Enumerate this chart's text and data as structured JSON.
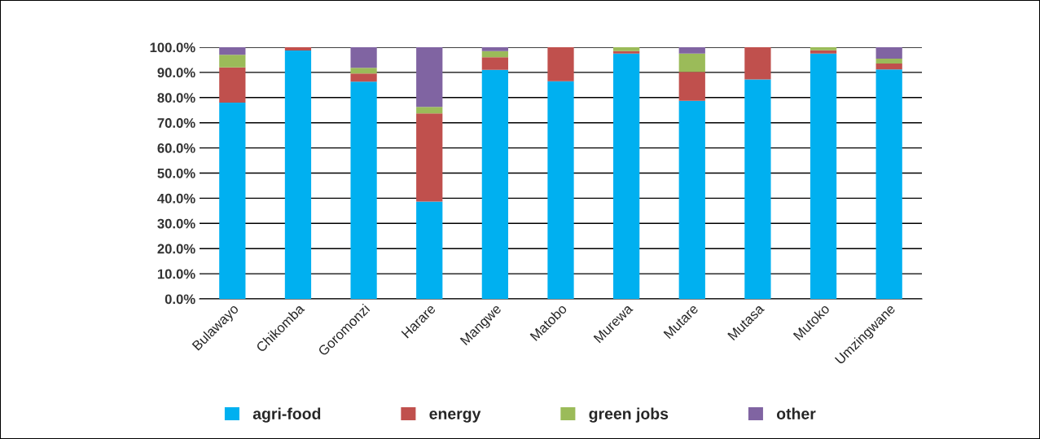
{
  "chart_data": {
    "type": "bar",
    "stacked": true,
    "categories": [
      "Bulawayo",
      "Chikomba",
      "Goromonzi",
      "Harare",
      "Mangwe",
      "Matobo",
      "Murewa",
      "Mutare",
      "Mutasa",
      "Mutoko",
      "Umzingwane"
    ],
    "series": [
      {
        "name": "agri-food",
        "color": "#00b0f0",
        "values": [
          78,
          98.7,
          86.3,
          38.7,
          91,
          86.5,
          97.5,
          78.7,
          87.2,
          97.5,
          91.2
        ]
      },
      {
        "name": "energy",
        "color": "#c0504d",
        "values": [
          14,
          1.3,
          3.3,
          35,
          5,
          13.5,
          1,
          11.5,
          12.8,
          1.3,
          2.3
        ]
      },
      {
        "name": "green jobs",
        "color": "#9bbb59",
        "values": [
          5,
          null,
          2.2,
          2.6,
          2.5,
          null,
          1.5,
          7.3,
          null,
          1.2,
          2
        ]
      },
      {
        "name": "other",
        "color": "#8064a2",
        "values": [
          3,
          null,
          8.2,
          23.7,
          1.5,
          null,
          null,
          2.5,
          null,
          null,
          4.5
        ]
      }
    ],
    "ylim": [
      0,
      100
    ],
    "yticks": [
      {
        "value": 0,
        "label": "0.0%"
      },
      {
        "value": 10,
        "label": "10.0%"
      },
      {
        "value": 20,
        "label": "20.0%"
      },
      {
        "value": 30,
        "label": "30.0%"
      },
      {
        "value": 40,
        "label": "40.0%"
      },
      {
        "value": 50,
        "label": "50.0%"
      },
      {
        "value": 60,
        "label": "60.0%"
      },
      {
        "value": 70,
        "label": "70.0%"
      },
      {
        "value": 80,
        "label": "80.0%"
      },
      {
        "value": 90,
        "label": "90.0%"
      },
      {
        "value": 100,
        "label": "100.0%"
      }
    ],
    "grid": "y",
    "legend": "bottom"
  }
}
